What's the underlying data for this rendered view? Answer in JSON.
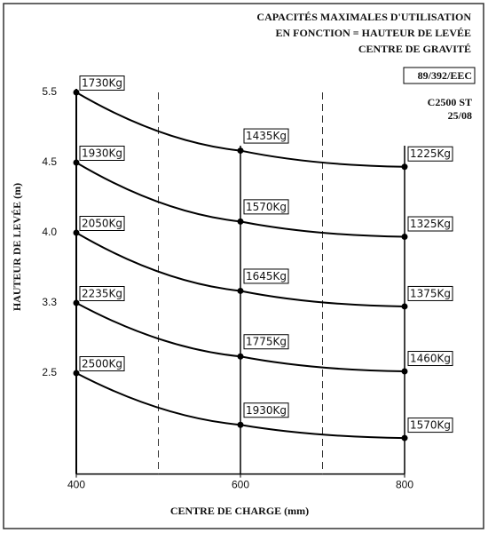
{
  "chart_data": {
    "type": "line",
    "title_lines": [
      "CAPACITÉS MAXIMALES D'UTILISATION",
      "EN FONCTION = HAUTEUR DE LEVÉE",
      "CENTRE DE GRAVITÉ"
    ],
    "standard": "89/392/EEC",
    "model": "C2500 ST",
    "version": "25/08",
    "xlabel": "CENTRE DE CHARGE (mm)",
    "ylabel": "HAUTEUR DE LEVÉE (m)",
    "x": [
      400,
      600,
      800
    ],
    "xlim": [
      400,
      800
    ],
    "xticks": [
      400,
      600,
      800
    ],
    "dashed_lines": [
      500,
      700
    ],
    "solid_lines": [
      600,
      800
    ],
    "ylim": [
      1.35,
      5.5
    ],
    "yticks": [
      {
        "value": 2.5,
        "label": "2.5"
      },
      {
        "value": 3.3,
        "label": "3.3"
      },
      {
        "value": 4,
        "label": "4.0"
      },
      {
        "value": 4.5,
        "label": "4.5"
      },
      {
        "value": 5.5,
        "label": "5.5"
      }
    ],
    "color": "#000000",
    "series": [
      {
        "values": [
          5.5,
          4.67,
          4.47
        ],
        "value_labels": [
          "1730Kg",
          "1435Kg",
          "1225Kg"
        ]
      },
      {
        "values": [
          4.5,
          4.08,
          3.96
        ],
        "value_labels": [
          "1930Kg",
          "1570Kg",
          "1325Kg"
        ]
      },
      {
        "values": [
          4,
          3.42,
          3.26
        ],
        "value_labels": [
          "2050Kg",
          "1645Kg",
          "1375Kg"
        ]
      },
      {
        "values": [
          3.3,
          2.69,
          2.52
        ],
        "value_labels": [
          "2235Kg",
          "1775Kg",
          "1460Kg"
        ]
      },
      {
        "values": [
          2.5,
          1.91,
          1.76
        ],
        "value_labels": [
          "2500Kg",
          "1930Kg",
          "1570Kg"
        ]
      }
    ]
  }
}
